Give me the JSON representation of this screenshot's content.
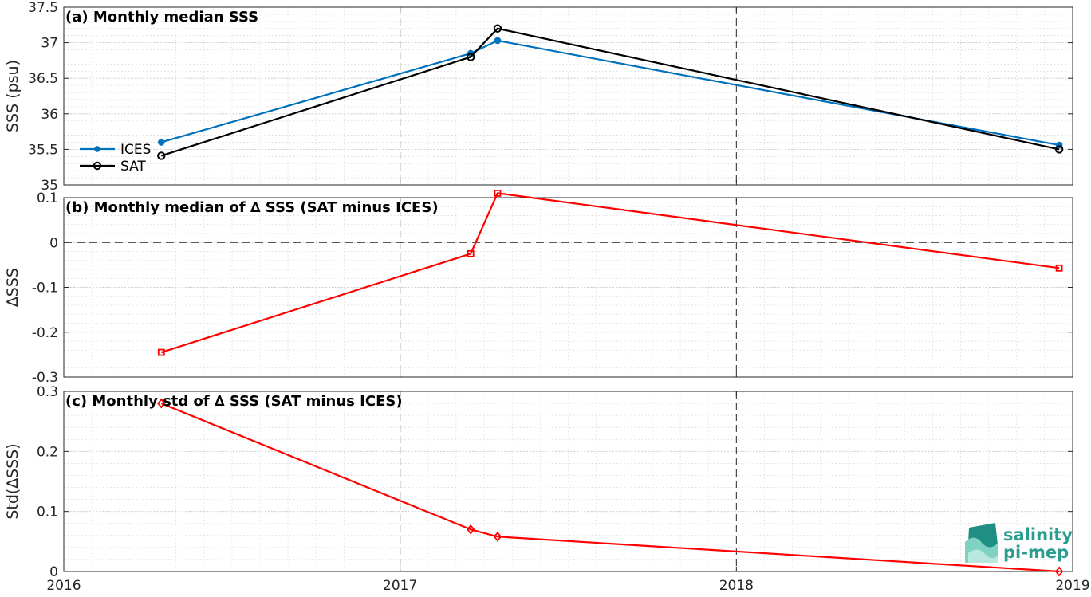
{
  "chart_data": [
    {
      "type": "line",
      "title": "(a) Monthly median SSS",
      "ylabel": "SSS (psu)",
      "xlim": [
        2016,
        2019
      ],
      "ylim": [
        35,
        37.5
      ],
      "yticks": [
        "35",
        "35.5",
        "36",
        "36.5",
        "37",
        "37.5"
      ],
      "grid": true,
      "legend_position": "left",
      "series": [
        {
          "name": "ICES",
          "color": "#0072bd",
          "marker": "dot",
          "x": [
            2016.29,
            2017.21,
            2017.29,
            2018.96
          ],
          "y": [
            35.6,
            36.85,
            37.03,
            35.56
          ]
        },
        {
          "name": "SAT",
          "color": "#000000",
          "marker": "circle",
          "x": [
            2016.29,
            2017.21,
            2017.29,
            2018.96
          ],
          "y": [
            35.41,
            36.8,
            37.2,
            35.5
          ]
        }
      ]
    },
    {
      "type": "line",
      "title": "(b) Monthly median of ∆ SSS (SAT minus ICES)",
      "ylabel": "∆SSS",
      "xlim": [
        2016,
        2019
      ],
      "ylim": [
        -0.3,
        0.1
      ],
      "yticks": [
        "-0.3",
        "-0.2",
        "-0.1",
        "0",
        "0.1"
      ],
      "grid": true,
      "reference_line_y": 0,
      "series": [
        {
          "color": "#ff0000",
          "marker": "square",
          "x": [
            2016.29,
            2017.21,
            2017.29,
            2018.96
          ],
          "y": [
            -0.245,
            -0.025,
            0.11,
            -0.057
          ]
        }
      ]
    },
    {
      "type": "line",
      "title": "(c) Monthly std of ∆ SSS (SAT minus ICES)",
      "ylabel": "Std(∆SSS)",
      "xlim": [
        2016,
        2019
      ],
      "ylim": [
        0,
        0.3
      ],
      "yticks": [
        "0",
        "0.1",
        "0.2",
        "0.3"
      ],
      "xticks": [
        "2016",
        "2017",
        "2018",
        "2019"
      ],
      "grid": true,
      "series": [
        {
          "color": "#ff0000",
          "marker": "diamond",
          "x": [
            2016.29,
            2017.21,
            2017.29,
            2018.96
          ],
          "y": [
            0.28,
            0.07,
            0.058,
            0.0
          ]
        }
      ]
    }
  ],
  "logo": {
    "line1": "salinity",
    "line2": "pi-mep"
  }
}
